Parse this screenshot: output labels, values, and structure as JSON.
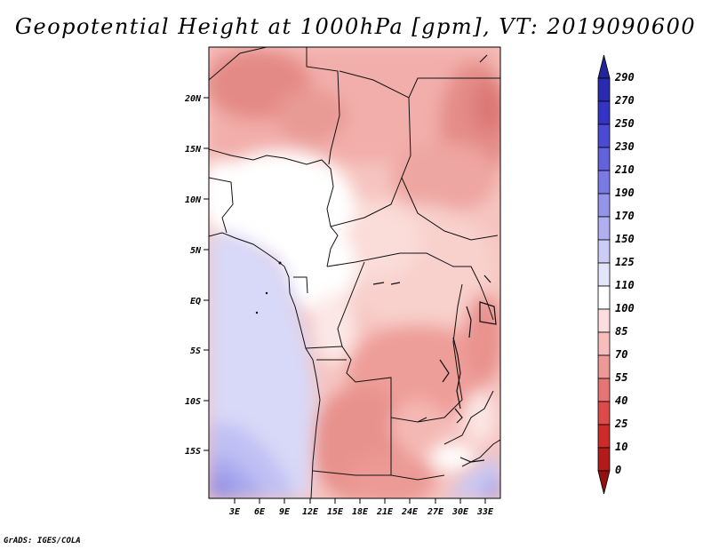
{
  "title": "Geopotential Height at 1000hPa [gpm], VT: 2019090600",
  "credit": "GrADS: IGES/COLA",
  "map": {
    "variable": "Geopotential Height",
    "level": "1000hPa",
    "units": "gpm",
    "valid_time": "2019090600",
    "lat_ticks": [
      "20N",
      "15N",
      "10N",
      "5N",
      "EQ",
      "5S",
      "10S",
      "15S"
    ],
    "lon_ticks": [
      "3E",
      "6E",
      "9E",
      "12E",
      "15E",
      "18E",
      "21E",
      "24E",
      "27E",
      "30E",
      "33E"
    ]
  },
  "colorbar": {
    "labels": [
      "290",
      "270",
      "250",
      "230",
      "210",
      "190",
      "170",
      "150",
      "125",
      "110",
      "100",
      "85",
      "70",
      "55",
      "40",
      "25",
      "10",
      "0"
    ],
    "colors": [
      "#23239b",
      "#2a2ab0",
      "#3434c4",
      "#4a4ad4",
      "#6262dc",
      "#7a7ae4",
      "#9494ea",
      "#b0b0f0",
      "#ccccf6",
      "#e4e4fa",
      "#ffffff",
      "#fcdede",
      "#f7bcbc",
      "#ef9898",
      "#e67474",
      "#dc4a4a",
      "#cf2a2a",
      "#b31a1a",
      "#951010"
    ]
  }
}
